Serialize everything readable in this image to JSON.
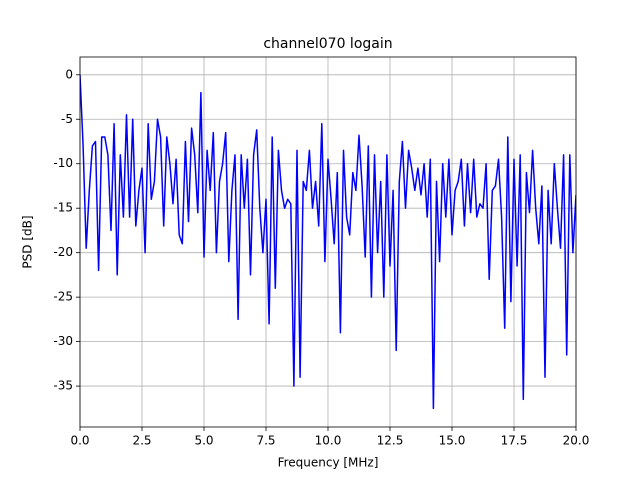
{
  "chart_data": {
    "type": "line",
    "title": "channel070 logain",
    "x_label": "Frequency [MHz]",
    "y_label": "PSD [dB]",
    "x": [
      0,
      0.125,
      0.25,
      0.375,
      0.5,
      0.625,
      0.75,
      0.875,
      1,
      1.125,
      1.25,
      1.375,
      1.5,
      1.625,
      1.75,
      1.875,
      2,
      2.125,
      2.25,
      2.375,
      2.5,
      2.625,
      2.75,
      2.875,
      3,
      3.125,
      3.25,
      3.375,
      3.5,
      3.625,
      3.75,
      3.875,
      4,
      4.125,
      4.25,
      4.375,
      4.5,
      4.625,
      4.75,
      4.875,
      5,
      5.125,
      5.25,
      5.375,
      5.5,
      5.625,
      5.75,
      5.875,
      6,
      6.125,
      6.25,
      6.375,
      6.5,
      6.625,
      6.75,
      6.875,
      7,
      7.125,
      7.25,
      7.375,
      7.5,
      7.625,
      7.75,
      7.875,
      8,
      8.125,
      8.25,
      8.375,
      8.5,
      8.625,
      8.75,
      8.875,
      9,
      9.125,
      9.25,
      9.375,
      9.5,
      9.625,
      9.75,
      9.875,
      10,
      10.125,
      10.25,
      10.375,
      10.5,
      10.625,
      10.75,
      10.875,
      11,
      11.125,
      11.25,
      11.375,
      11.5,
      11.625,
      11.75,
      11.875,
      12,
      12.125,
      12.25,
      12.375,
      12.5,
      12.625,
      12.75,
      12.875,
      13,
      13.125,
      13.25,
      13.375,
      13.5,
      13.625,
      13.75,
      13.875,
      14,
      14.125,
      14.25,
      14.375,
      14.5,
      14.625,
      14.75,
      14.875,
      15,
      15.125,
      15.25,
      15.375,
      15.5,
      15.625,
      15.75,
      15.875,
      16,
      16.125,
      16.25,
      16.375,
      16.5,
      16.625,
      16.75,
      16.875,
      17,
      17.125,
      17.25,
      17.375,
      17.5,
      17.625,
      17.75,
      17.875,
      18,
      18.125,
      18.25,
      18.375,
      18.5,
      18.625,
      18.75,
      18.875,
      19,
      19.125,
      19.25,
      19.375,
      19.5,
      19.625,
      19.75,
      19.875,
      20
    ],
    "series": [
      {
        "name": "PSD",
        "color": "#0000ff",
        "values": [
          0,
          -8,
          -19.5,
          -13,
          -8,
          -7.5,
          -22,
          -7,
          -7,
          -9,
          -17.5,
          -5.5,
          -22.5,
          -9,
          -16,
          -4.5,
          -16,
          -5,
          -17,
          -13,
          -10.5,
          -20,
          -5.5,
          -14,
          -12,
          -5,
          -7,
          -17,
          -7,
          -10,
          -14.5,
          -9.5,
          -18,
          -19,
          -7.5,
          -16.5,
          -6,
          -9,
          -15.5,
          -2,
          -20.5,
          -8.5,
          -13,
          -6.5,
          -20,
          -12,
          -10,
          -6.5,
          -21,
          -13,
          -9,
          -27.5,
          -9,
          -15,
          -9.5,
          -22.5,
          -9,
          -6.2,
          -15,
          -20,
          -14,
          -28,
          -7,
          -24,
          -8.5,
          -13,
          -15,
          -14,
          -14.5,
          -35,
          -8.5,
          -34,
          -12,
          -13,
          -8.5,
          -15,
          -12,
          -17,
          -5.5,
          -21,
          -9.5,
          -14,
          -19,
          -11,
          -29,
          -8.5,
          -16,
          -18,
          -11,
          -13,
          -6.8,
          -12.5,
          -20.5,
          -8,
          -25,
          -9,
          -20,
          -12,
          -25,
          -9,
          -21.5,
          -13,
          -31,
          -12,
          -7.5,
          -15,
          -8.5,
          -10.5,
          -13,
          -10.5,
          -13.5,
          -10,
          -16,
          -9.5,
          -37.5,
          -12,
          -21,
          -10,
          -16,
          -9.5,
          -18,
          -13,
          -12,
          -9.5,
          -17,
          -10,
          -15.5,
          -9.5,
          -16,
          -14.5,
          -15,
          -10,
          -23,
          -13,
          -12.5,
          -9.5,
          -16,
          -28.5,
          -7,
          -25.5,
          -9.5,
          -21.5,
          -9,
          -36.5,
          -11,
          -15.5,
          -8.5,
          -15,
          -19,
          -12.5,
          -34,
          -13,
          -19,
          -10,
          -15,
          -19.5,
          -9,
          -31.5,
          -9,
          -20,
          -13.5
        ]
      }
    ],
    "xlim": [
      0,
      20
    ],
    "ylim": [
      -39.6,
      2
    ],
    "xticks": [
      {
        "value": 0,
        "label": "0.0"
      },
      2.5,
      {
        "value": 5,
        "label": "5.0"
      },
      7.5,
      {
        "value": 10,
        "label": "10.0"
      },
      12.5,
      {
        "value": 15,
        "label": "15.0"
      },
      17.5,
      {
        "value": 20,
        "label": "20.0"
      }
    ],
    "yticks": [
      0,
      -5,
      -10,
      -15,
      -20,
      -25,
      -30,
      -35
    ],
    "grid": true
  }
}
